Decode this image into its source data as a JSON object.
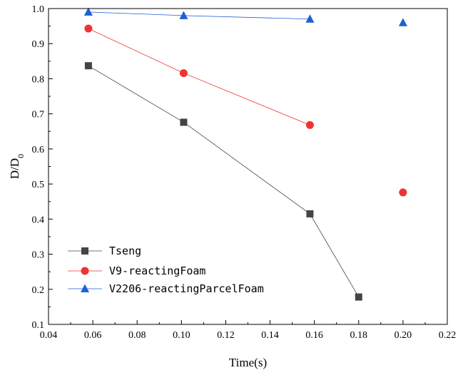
{
  "chart_data": {
    "type": "scatter",
    "xlabel": "Time(s)",
    "ylabel_main": "D/D",
    "ylabel_sub": "0",
    "xlim": [
      0.04,
      0.22
    ],
    "ylim": [
      0.1,
      1.0
    ],
    "xticks": [
      "0.04",
      "0.06",
      "0.08",
      "0.10",
      "0.12",
      "0.14",
      "0.16",
      "0.18",
      "0.20",
      "0.22"
    ],
    "yticks": [
      "0.1",
      "0.2",
      "0.3",
      "0.4",
      "0.5",
      "0.6",
      "0.7",
      "0.8",
      "0.9",
      "1.0"
    ],
    "legend_position": "bottom-left",
    "series": [
      {
        "name": "Tseng",
        "marker": "square",
        "color": "#444444",
        "line_color": "#444444",
        "x": [
          0.058,
          0.101,
          0.158,
          0.18
        ],
        "y": [
          0.837,
          0.676,
          0.415,
          0.178
        ],
        "connected": [
          true,
          true,
          true,
          true
        ]
      },
      {
        "name": "V9-reactingFoam",
        "marker": "circle",
        "color": "#ee3333",
        "line_color": "#ee3333",
        "x": [
          0.058,
          0.101,
          0.158,
          0.2
        ],
        "y": [
          0.943,
          0.816,
          0.668,
          0.476
        ],
        "connected": [
          true,
          true,
          true,
          false
        ]
      },
      {
        "name": "V2206-reactingParcelFoam",
        "marker": "triangle",
        "color": "#1f5fd6",
        "line_color": "#1f5fd6",
        "x": [
          0.058,
          0.101,
          0.158,
          0.2
        ],
        "y": [
          0.99,
          0.98,
          0.97,
          0.96
        ],
        "connected": [
          true,
          true,
          true,
          false
        ]
      }
    ]
  }
}
